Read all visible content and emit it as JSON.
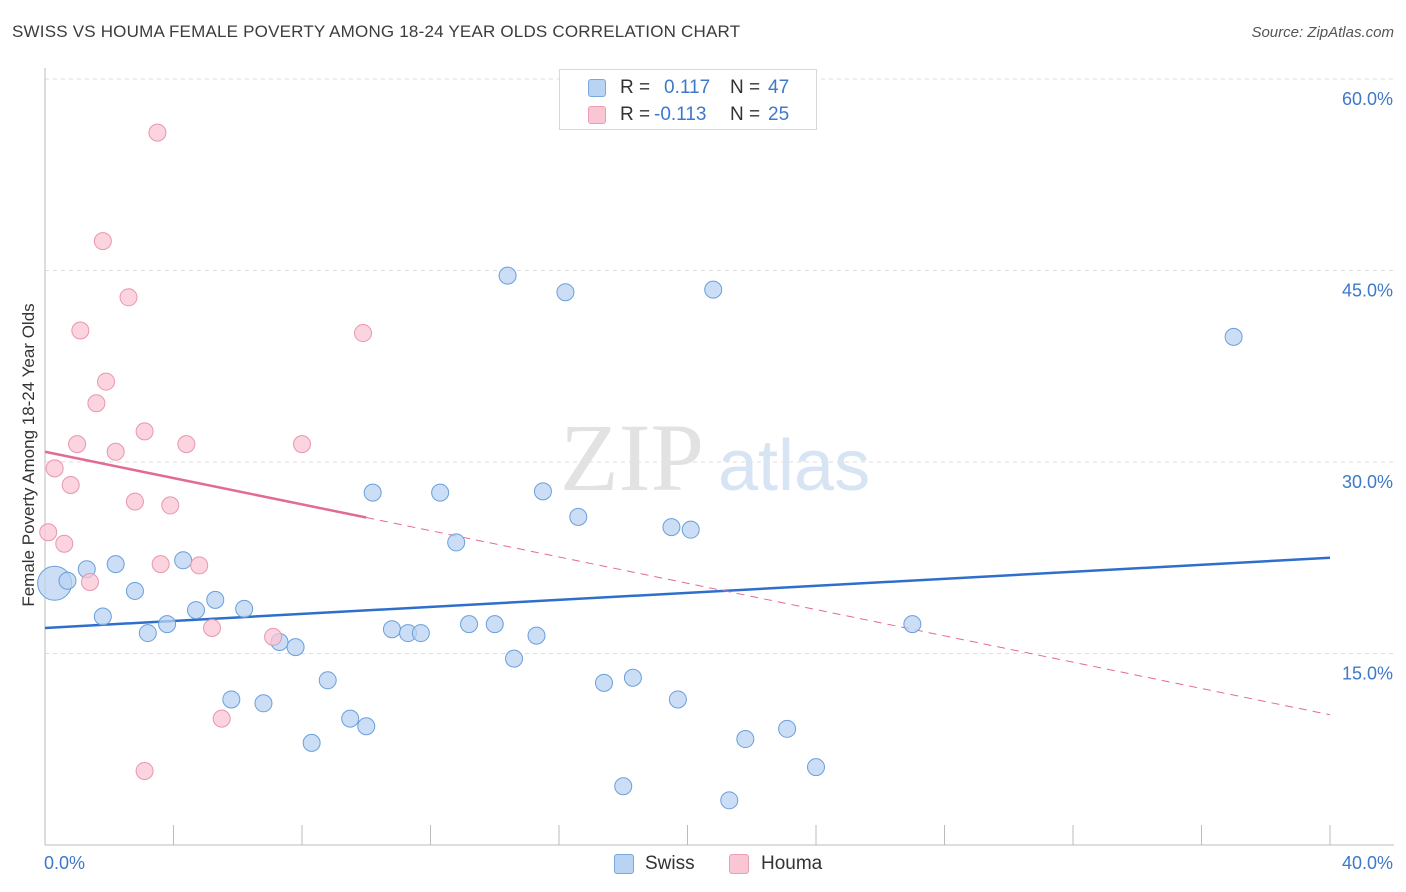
{
  "header": {
    "title": "SWISS VS HOUMA FEMALE POVERTY AMONG 18-24 YEAR OLDS CORRELATION CHART",
    "source": "Source: ZipAtlas.com"
  },
  "legend": {
    "rows": [
      {
        "r_label": "R =",
        "r_value": "0.117",
        "n_label": "N =",
        "n_value": "47",
        "color": "#b9d3f2"
      },
      {
        "r_label": "R =",
        "r_value": "-0.113",
        "n_label": "N =",
        "n_value": "25",
        "color": "#f9c6d4"
      }
    ]
  },
  "bottom_legend": {
    "items": [
      {
        "label": "Swiss",
        "color": "#b9d3f2"
      },
      {
        "label": "Houma",
        "color": "#f9c6d4"
      }
    ]
  },
  "watermark": {
    "zip": "ZIP",
    "atlas": "atlas"
  },
  "chart_data": {
    "type": "scatter",
    "title": "SWISS VS HOUMA FEMALE POVERTY AMONG 18-24 YEAR OLDS CORRELATION CHART",
    "xlabel": "",
    "ylabel": "Female Poverty Among 18-24 Year Olds",
    "xlim": [
      0,
      40
    ],
    "ylim": [
      0,
      60
    ],
    "x_tick_labels": [
      "0.0%",
      "40.0%"
    ],
    "y_ticks": [
      15,
      30,
      45,
      60
    ],
    "y_tick_labels": [
      "15.0%",
      "30.0%",
      "45.0%",
      "60.0%"
    ],
    "grid": true,
    "legend_position": "top-center",
    "series": [
      {
        "name": "Swiss",
        "color": "#b9d3f2",
        "stroke": "#6a9fdc",
        "trend": {
          "x": [
            0,
            40
          ],
          "y": [
            17.0,
            22.5
          ],
          "color": "#2f6fcc",
          "dashed_from": null
        },
        "points": [
          [
            0.3,
            20.5,
            "big"
          ],
          [
            0.7,
            20.7
          ],
          [
            1.3,
            21.6
          ],
          [
            1.8,
            17.9
          ],
          [
            2.2,
            22.0
          ],
          [
            2.8,
            19.9
          ],
          [
            3.2,
            16.6
          ],
          [
            3.8,
            17.3
          ],
          [
            4.3,
            22.3
          ],
          [
            4.7,
            18.4
          ],
          [
            5.3,
            19.2
          ],
          [
            5.8,
            11.4
          ],
          [
            6.2,
            18.5
          ],
          [
            6.8,
            11.1
          ],
          [
            7.3,
            15.9
          ],
          [
            7.8,
            15.5
          ],
          [
            8.3,
            8.0
          ],
          [
            8.8,
            12.9
          ],
          [
            9.5,
            9.9
          ],
          [
            10.0,
            9.3
          ],
          [
            10.2,
            27.6
          ],
          [
            10.8,
            16.9
          ],
          [
            11.3,
            16.6
          ],
          [
            11.7,
            16.6
          ],
          [
            12.3,
            27.6
          ],
          [
            12.8,
            23.7
          ],
          [
            13.2,
            17.3
          ],
          [
            14.0,
            17.3
          ],
          [
            14.4,
            44.6
          ],
          [
            14.6,
            14.6
          ],
          [
            15.3,
            16.4
          ],
          [
            15.5,
            27.7
          ],
          [
            16.2,
            43.3
          ],
          [
            16.6,
            25.7
          ],
          [
            17.4,
            12.7
          ],
          [
            18.0,
            4.6
          ],
          [
            18.3,
            13.1
          ],
          [
            19.5,
            24.9
          ],
          [
            19.7,
            11.4
          ],
          [
            20.1,
            24.7
          ],
          [
            20.8,
            43.5
          ],
          [
            21.3,
            3.5
          ],
          [
            21.8,
            8.3
          ],
          [
            23.1,
            9.1
          ],
          [
            24.0,
            6.1
          ],
          [
            27.0,
            17.3
          ],
          [
            37.0,
            39.8
          ]
        ]
      },
      {
        "name": "Houma",
        "color": "#f9c6d4",
        "stroke": "#e996ad",
        "trend": {
          "x": [
            0,
            40
          ],
          "y": [
            30.8,
            10.2
          ],
          "color": "#e26b93",
          "dashed_from": 10
        },
        "points": [
          [
            0.1,
            24.5
          ],
          [
            0.3,
            29.5
          ],
          [
            0.6,
            23.6
          ],
          [
            0.8,
            28.2
          ],
          [
            1.0,
            31.4
          ],
          [
            1.1,
            40.3
          ],
          [
            1.4,
            20.6
          ],
          [
            1.6,
            34.6
          ],
          [
            1.8,
            47.3
          ],
          [
            1.9,
            36.3
          ],
          [
            2.2,
            30.8
          ],
          [
            2.6,
            42.9
          ],
          [
            2.8,
            26.9
          ],
          [
            3.1,
            32.4
          ],
          [
            3.1,
            5.8
          ],
          [
            3.5,
            55.8
          ],
          [
            3.6,
            22.0
          ],
          [
            3.9,
            26.6
          ],
          [
            4.4,
            31.4
          ],
          [
            4.8,
            21.9
          ],
          [
            5.2,
            17.0
          ],
          [
            5.5,
            9.9
          ],
          [
            7.1,
            16.3
          ],
          [
            8.0,
            31.4
          ],
          [
            9.9,
            40.1
          ]
        ]
      }
    ]
  }
}
